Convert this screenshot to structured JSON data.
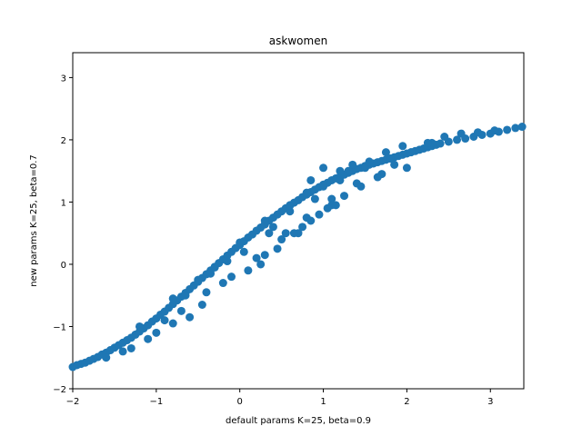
{
  "chart_data": {
    "type": "scatter",
    "title": "askwomen",
    "xlabel": "default params K=25, beta=0.9",
    "ylabel": "new params K=25, beta=0.7",
    "xlim": [
      -2.0,
      3.4
    ],
    "ylim": [
      -2.0,
      3.4
    ],
    "xticks": [
      "−2",
      "−1",
      "0",
      "1",
      "2",
      "3"
    ],
    "yticks": [
      "−2",
      "−1",
      "0",
      "1",
      "2",
      "3"
    ],
    "grid": false,
    "marker_color": "#1f77b4",
    "series": [
      {
        "x": [
          -2.0,
          -1.95,
          -1.9,
          -1.85,
          -1.8,
          -1.75,
          -1.7,
          -1.65,
          -1.6,
          -1.55,
          -1.5,
          -1.45,
          -1.4,
          -1.35,
          -1.3,
          -1.25,
          -1.2,
          -1.15,
          -1.1,
          -1.05,
          -1.0,
          -0.95,
          -0.9,
          -0.85,
          -0.8,
          -0.75,
          -0.7,
          -0.65,
          -0.6,
          -0.55,
          -0.5,
          -0.45,
          -0.4,
          -0.35,
          -0.3,
          -0.25,
          -0.2,
          -0.15,
          -0.1,
          -0.05,
          0.0,
          0.05,
          0.1,
          0.15,
          0.2,
          0.25,
          0.3,
          0.35,
          0.4,
          0.45,
          0.5,
          0.55,
          0.6,
          0.65,
          0.7,
          0.75,
          0.8,
          0.85,
          0.9,
          0.95,
          1.0,
          1.05,
          1.1,
          1.15,
          1.2,
          1.25,
          1.3,
          1.35,
          1.4,
          1.45,
          1.5,
          1.55,
          1.6,
          1.65,
          1.7,
          1.75,
          1.8,
          1.85,
          1.9,
          1.95,
          2.0,
          2.05,
          2.1,
          2.15,
          2.2,
          2.25,
          2.3,
          2.35,
          2.4,
          2.5,
          2.6,
          2.7,
          2.8,
          2.9,
          3.0,
          3.1,
          3.2,
          3.3,
          3.38,
          -1.6,
          -1.3,
          -1.0,
          -0.7,
          -0.4,
          -0.1,
          0.2,
          0.5,
          0.8,
          1.1,
          1.4,
          1.7,
          2.0,
          -1.2,
          -0.8,
          -0.3,
          0.3,
          0.8,
          1.3,
          1.8,
          2.3,
          -0.5,
          0.0,
          0.4,
          0.9,
          1.2,
          1.5,
          -0.2,
          0.6,
          1.0,
          0.3,
          0.7,
          1.1,
          -0.8,
          -0.6,
          -0.45,
          0.1,
          0.25,
          0.45,
          0.65,
          0.85,
          1.05,
          1.25,
          1.45,
          1.65,
          1.85,
          2.05,
          2.25,
          2.45,
          2.65,
          2.85,
          3.05,
          0.55,
          0.75,
          0.95,
          1.15,
          -1.4,
          -1.1,
          -0.9,
          -0.65,
          -0.35,
          -0.15,
          0.05,
          0.35,
          0.6,
          0.85,
          1.0,
          1.2,
          1.35,
          1.55,
          1.75,
          1.95
        ],
        "y": [
          -1.65,
          -1.62,
          -1.6,
          -1.58,
          -1.55,
          -1.52,
          -1.49,
          -1.45,
          -1.42,
          -1.38,
          -1.34,
          -1.3,
          -1.26,
          -1.22,
          -1.18,
          -1.13,
          -1.08,
          -1.03,
          -0.98,
          -0.92,
          -0.87,
          -0.81,
          -0.76,
          -0.7,
          -0.64,
          -0.58,
          -0.52,
          -0.46,
          -0.4,
          -0.34,
          -0.28,
          -0.22,
          -0.16,
          -0.1,
          -0.04,
          0.02,
          0.08,
          0.14,
          0.2,
          0.26,
          0.31,
          0.37,
          0.43,
          0.48,
          0.54,
          0.59,
          0.64,
          0.7,
          0.75,
          0.8,
          0.85,
          0.9,
          0.94,
          0.99,
          1.03,
          1.08,
          1.12,
          1.16,
          1.2,
          1.24,
          1.28,
          1.31,
          1.35,
          1.38,
          1.41,
          1.44,
          1.47,
          1.5,
          1.53,
          1.55,
          1.58,
          1.6,
          1.62,
          1.64,
          1.66,
          1.68,
          1.7,
          1.72,
          1.74,
          1.76,
          1.78,
          1.8,
          1.82,
          1.84,
          1.86,
          1.88,
          1.9,
          1.92,
          1.94,
          1.97,
          2.0,
          2.02,
          2.05,
          2.08,
          2.1,
          2.13,
          2.16,
          2.19,
          2.21,
          -1.5,
          -1.35,
          -1.1,
          -0.75,
          -0.45,
          -0.2,
          0.1,
          0.4,
          0.75,
          1.05,
          1.3,
          1.45,
          1.55,
          -1.0,
          -0.55,
          -0.05,
          0.7,
          1.15,
          1.5,
          1.7,
          1.95,
          -0.25,
          0.35,
          0.6,
          1.05,
          1.35,
          1.55,
          -0.3,
          0.85,
          1.25,
          0.15,
          0.5,
          0.95,
          -0.95,
          -0.85,
          -0.65,
          -0.1,
          0.0,
          0.25,
          0.5,
          0.7,
          0.9,
          1.1,
          1.25,
          1.4,
          1.6,
          1.8,
          1.95,
          2.05,
          2.1,
          2.12,
          2.15,
          0.5,
          0.6,
          0.8,
          0.95,
          -1.4,
          -1.2,
          -0.9,
          -0.5,
          -0.15,
          0.05,
          0.2,
          0.5,
          0.95,
          1.35,
          1.55,
          1.5,
          1.6,
          1.65,
          1.8,
          1.9
        ]
      }
    ]
  }
}
